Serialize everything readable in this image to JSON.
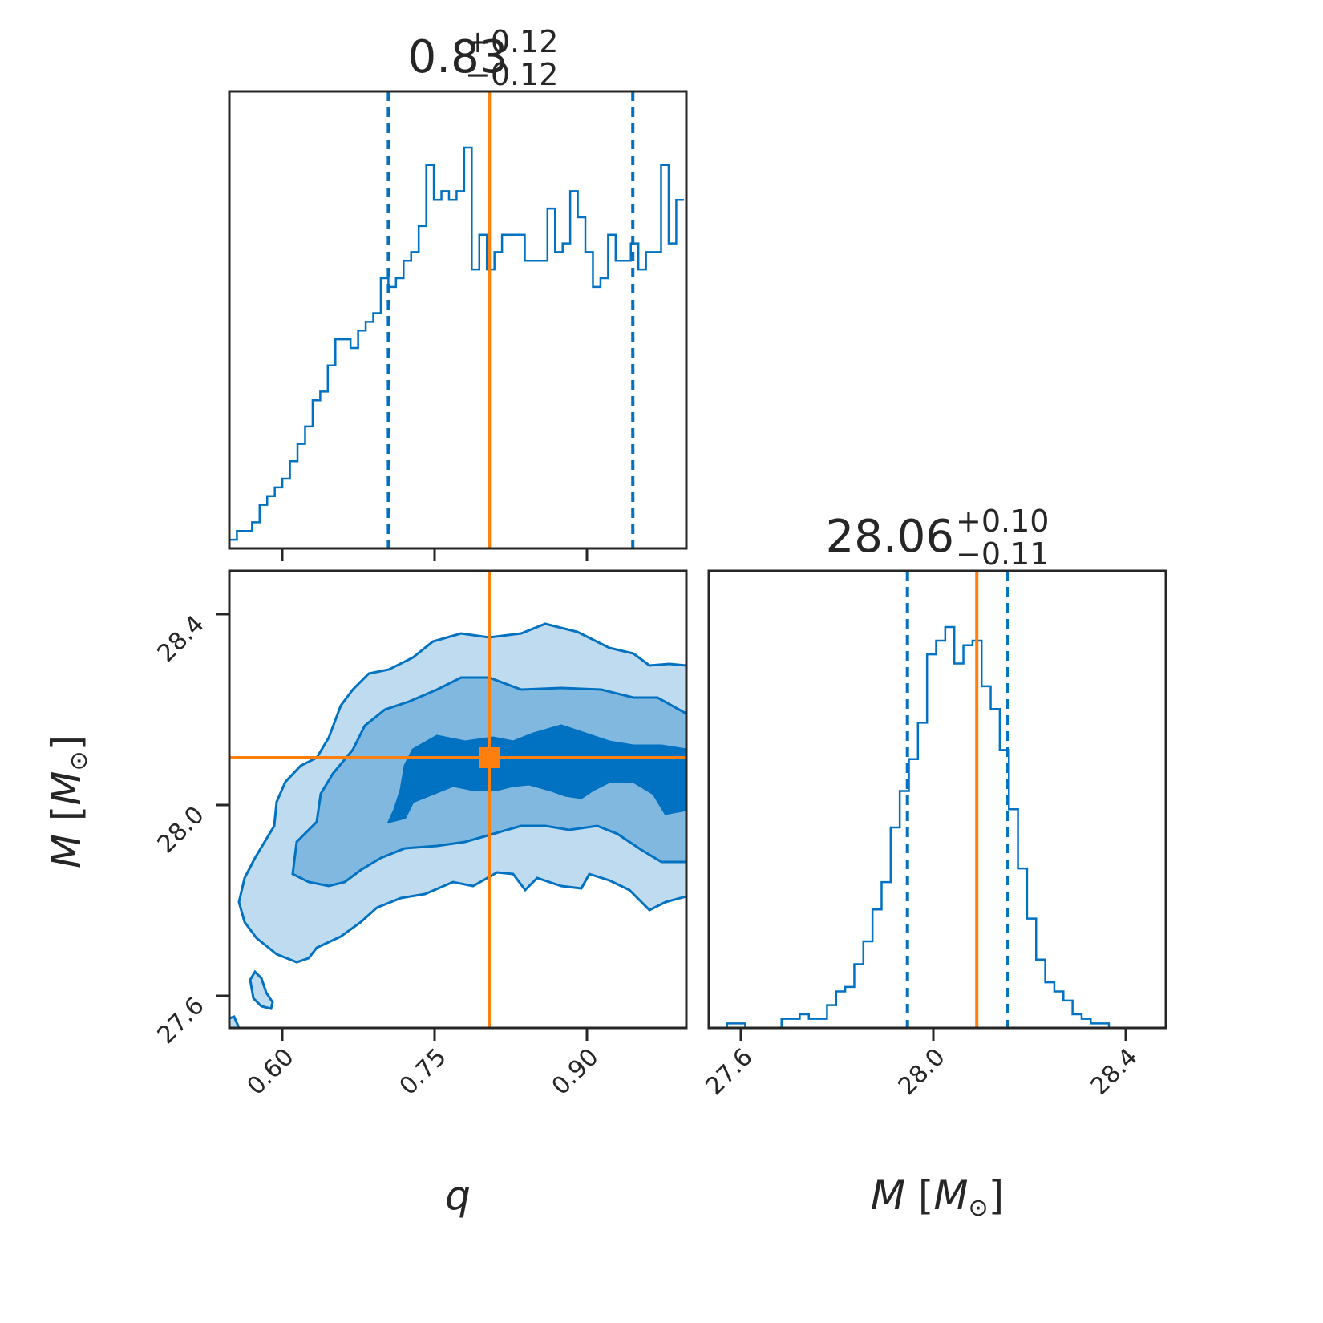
{
  "colors": {
    "main": "#0072c1",
    "truth": "#ff7f0e",
    "frame": "#262626",
    "fill_outer": "#bfdbf0",
    "fill_mid": "#80b8e0",
    "fill_inner": "#0072c1"
  },
  "chart_data": [
    {
      "panel": "q-histogram",
      "type": "step-histogram",
      "title_value": "0.83",
      "title_plus": "+0.12",
      "title_minus": "−0.12",
      "xlim": [
        0.5475,
        1.0
      ],
      "quantiles": [
        0.705,
        0.947
      ],
      "truth": 0.805,
      "bin_edges_start": 0.5475,
      "bin_width": 0.0075,
      "counts": [
        1,
        2,
        2,
        3,
        5,
        6,
        7,
        8,
        10,
        12,
        14,
        17,
        18,
        21,
        24,
        24,
        23,
        25,
        26,
        27,
        31,
        30,
        31,
        33,
        34,
        37,
        44,
        40,
        41,
        40,
        41,
        46,
        32,
        36,
        32,
        34,
        36,
        36,
        36,
        33,
        33,
        33,
        39,
        34,
        35,
        41,
        38,
        34,
        30,
        31,
        36,
        33,
        33,
        35,
        32,
        34,
        34,
        44,
        35,
        40
      ]
    },
    {
      "panel": "q-M-2d",
      "type": "contour",
      "xlim": [
        0.5475,
        1.0
      ],
      "ylim": [
        27.535,
        28.49
      ],
      "xticks": [
        "0.60",
        "0.75",
        "0.90"
      ],
      "yticks": [
        "27.6",
        "28.0",
        "28.4"
      ],
      "truth": [
        0.805,
        28.1
      ],
      "levels": [
        "outer",
        "mid",
        "inner"
      ]
    },
    {
      "panel": "M-histogram",
      "type": "step-histogram",
      "title_value": "28.06",
      "title_plus": "+0.10",
      "title_minus": "−0.11",
      "xlim": [
        27.535,
        28.49
      ],
      "xticks": [
        "27.6",
        "28.0",
        "28.4"
      ],
      "quantiles": [
        27.95,
        28.16
      ],
      "truth": 28.095,
      "bin_edges_start": 27.535,
      "bin_width": 0.019,
      "counts": [
        0,
        0,
        1,
        1,
        0,
        0,
        0,
        0,
        2,
        2,
        3,
        2,
        2,
        5,
        8,
        9,
        14,
        19,
        26,
        32,
        44,
        52,
        59,
        67,
        82,
        85,
        88,
        80,
        84,
        85,
        75,
        70,
        61,
        48,
        35,
        24,
        15,
        10,
        8,
        6,
        3,
        2,
        1,
        1,
        0,
        0,
        0,
        0,
        0,
        0
      ]
    }
  ],
  "labels": {
    "q_axis": "q",
    "M_axis_italic": "M",
    "M_axis_rest_open": " [",
    "M_axis_sub": "M",
    "M_axis_sun": "⊙",
    "M_axis_close": "]"
  }
}
